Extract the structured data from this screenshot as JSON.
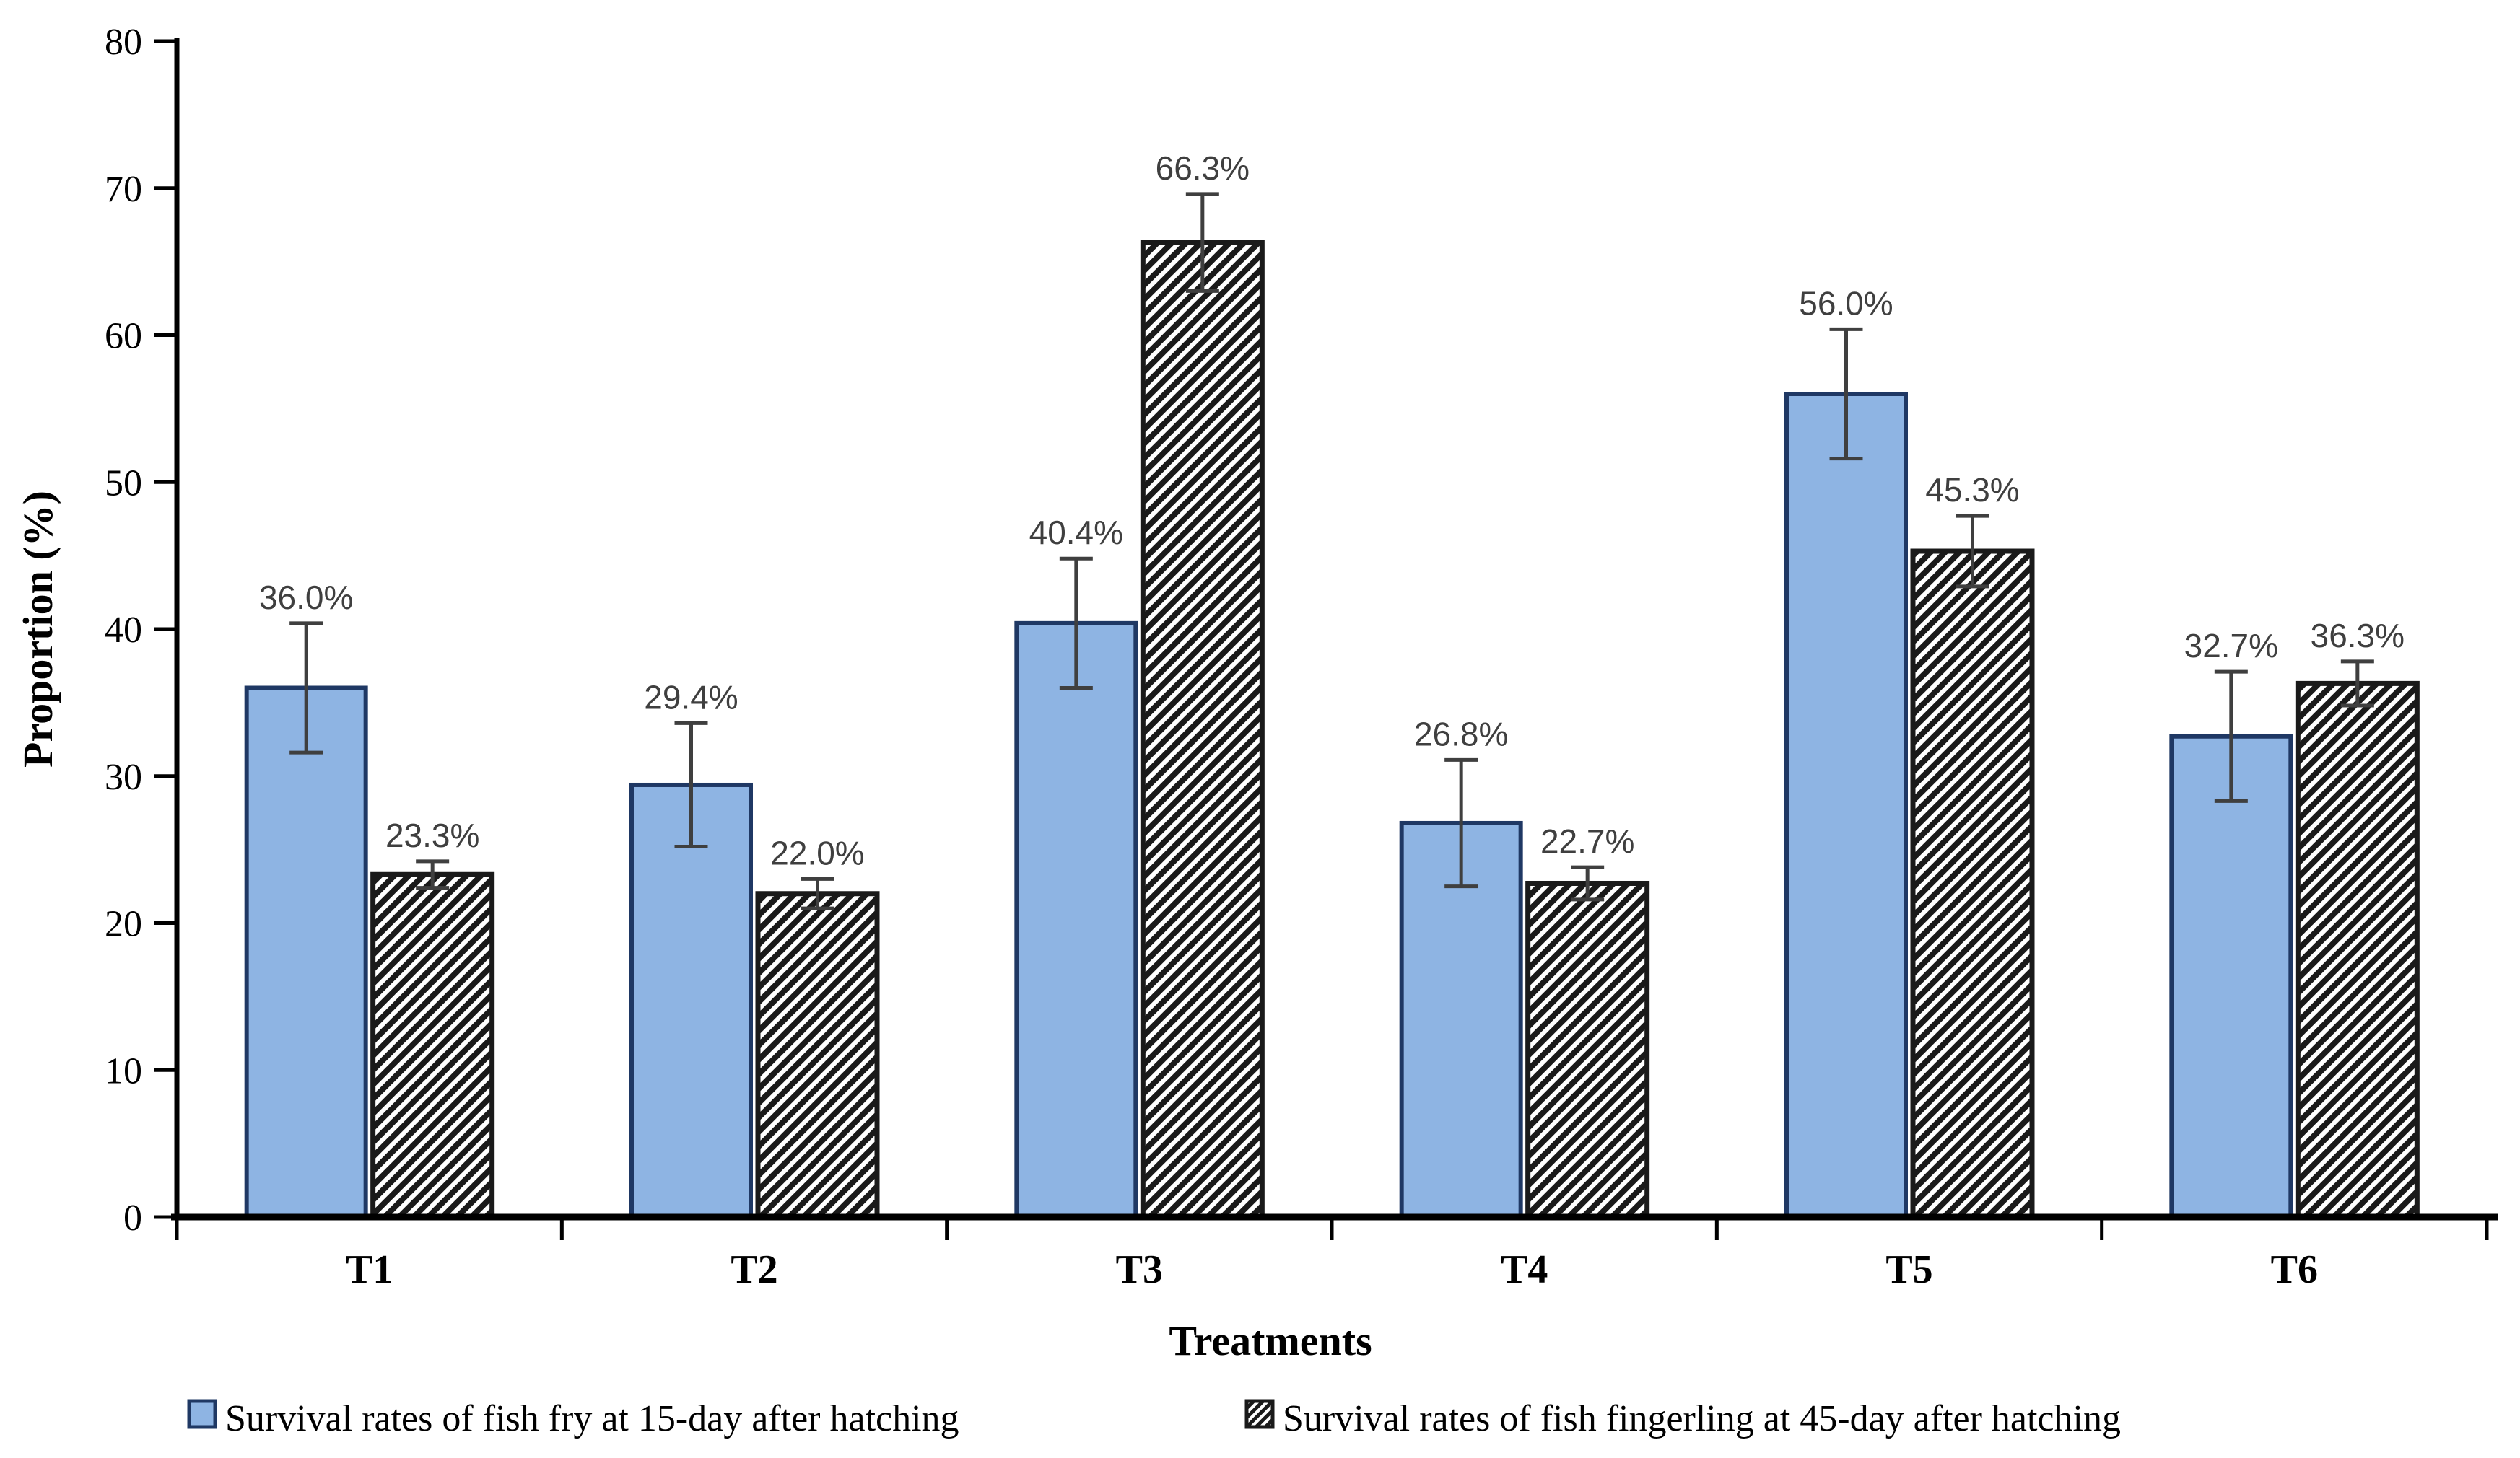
{
  "chart_data": {
    "type": "bar",
    "title": "",
    "xlabel": "Treatments",
    "ylabel": "Proportion (%)",
    "categories": [
      "T1",
      "T2",
      "T3",
      "T4",
      "T5",
      "T6"
    ],
    "y_axis": {
      "min": 0,
      "max": 80,
      "step": 10,
      "ticks": [
        0,
        10,
        20,
        30,
        40,
        50,
        60,
        70,
        80
      ]
    },
    "grid": false,
    "legend_position": "bottom",
    "series": [
      {
        "name": "Survival rates of fish fry at 15-day after hatching",
        "style": "solid",
        "fill": "#8EB4E3",
        "border": "#1F3864",
        "values": [
          36.0,
          29.4,
          40.4,
          26.8,
          56.0,
          32.7
        ],
        "labels": [
          "36.0%",
          "29.4%",
          "40.4%",
          "26.8%",
          "56.0%",
          "32.7%"
        ],
        "errors": [
          4.4,
          4.2,
          4.4,
          4.3,
          4.4,
          4.4
        ]
      },
      {
        "name": "Survival rates of fish fingerling at 45-day after hatching",
        "style": "hatched",
        "fill": "#FFFFFF",
        "hatch_color": "#1A1A1A",
        "border": "#1A1A1A",
        "values": [
          23.3,
          22.0,
          66.3,
          22.7,
          45.3,
          36.3
        ],
        "labels": [
          "23.3%",
          "22.0%",
          "66.3%",
          "22.7%",
          "45.3%",
          "36.3%"
        ],
        "errors": [
          0.9,
          1.0,
          3.3,
          1.1,
          2.4,
          1.5
        ]
      }
    ],
    "error_bar_color": "#3F3F3F",
    "label_color": "#3F3F3F",
    "axis_color": "#000000"
  }
}
